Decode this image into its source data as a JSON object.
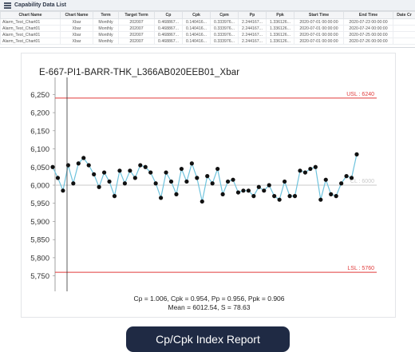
{
  "panel": {
    "title": "Capability Data List",
    "columns": [
      "Chart Name",
      "Chart Name",
      "Term",
      "Target Term",
      "Cp",
      "Cpk",
      "Cpm",
      "Pp",
      "Ppk",
      "Start Time",
      "End Time",
      "Date Cr"
    ],
    "rows": [
      [
        "Alarm_Test_Chart01",
        "Xbar",
        "Monthly",
        "202007",
        "0.468867...",
        "0.140416...",
        "0.333976...",
        "2.244167...",
        "1.336126...",
        "2020-07-01 00:00:00",
        "2020-07-23 00:00:00",
        ""
      ],
      [
        "Alarm_Test_Chart01",
        "Xbar",
        "Monthly",
        "202007",
        "0.468867...",
        "0.140416...",
        "0.333976...",
        "2.244167...",
        "1.336126...",
        "2020-07-01 00:00:00",
        "2020-07-24 00:00:00",
        ""
      ],
      [
        "Alarm_Test_Chart01",
        "Xbar",
        "Monthly",
        "202007",
        "0.468867...",
        "0.140416...",
        "0.333976...",
        "2.244167...",
        "1.336126...",
        "2020-07-01 00:00:00",
        "2020-07-25 00:00:00",
        ""
      ],
      [
        "Alarm_Test_Chart01",
        "Xbar",
        "Monthly",
        "202007",
        "0.468867...",
        "0.140416...",
        "0.333976...",
        "2.244167...",
        "1.336126...",
        "2020-07-01 00:00:00",
        "2020-07-26 00:00:00",
        ""
      ]
    ]
  },
  "chart": {
    "title": "E-667-PI1-BARR-THK_L366AB020EEB01_Xbar",
    "stats_line1": "Cp = 1.006, Cpk = 0.954, Pp = 0.956, Ppk = 0.906",
    "stats_line2": "Mean = 6012.54, S = 78.63"
  },
  "chart_data": {
    "type": "line",
    "title": "E-667-PI1-BARR-THK_L366AB020EEB01_Xbar",
    "xlabel": "",
    "ylabel": "",
    "ylim": [
      5725,
      6275
    ],
    "yticks": [
      "6,250",
      "6,200",
      "6,150",
      "6,100",
      "6,050",
      "6,000",
      "5,950",
      "5,900",
      "5,850",
      "5,800",
      "5,750"
    ],
    "ytick_values": [
      6250,
      6200,
      6150,
      6100,
      6050,
      6000,
      5950,
      5900,
      5850,
      5800,
      5750
    ],
    "grid": false,
    "limits": [
      {
        "label": "USL : 6240",
        "value": 6240,
        "color": "#e03a3a"
      },
      {
        "label": "CL : 6000",
        "value": 6000,
        "color": "#c8c8c8"
      },
      {
        "label": "LSL : 5760",
        "value": 5760,
        "color": "#e03a3a"
      }
    ],
    "series": [
      {
        "color": "#6ec3dd",
        "marker_color": "#111111",
        "values": [
          6050,
          6020,
          5985,
          6055,
          6005,
          6060,
          6075,
          6055,
          6030,
          5995,
          6035,
          6010,
          5970,
          6040,
          6005,
          6040,
          6020,
          6055,
          6050,
          6035,
          6005,
          5965,
          6035,
          6010,
          5975,
          6045,
          6010,
          6060,
          6020,
          5955,
          6025,
          6005,
          6045,
          5975,
          6010,
          6015,
          5980,
          5985,
          5985,
          5970,
          5995,
          5985,
          6000,
          5970,
          5960,
          6010,
          5970,
          5970,
          6040,
          6035,
          6045,
          6050,
          5960,
          6015,
          5975,
          5970,
          6005,
          6025,
          6020,
          6085
        ]
      }
    ]
  },
  "caption": {
    "label": "Cp/Cpk Index Report"
  }
}
